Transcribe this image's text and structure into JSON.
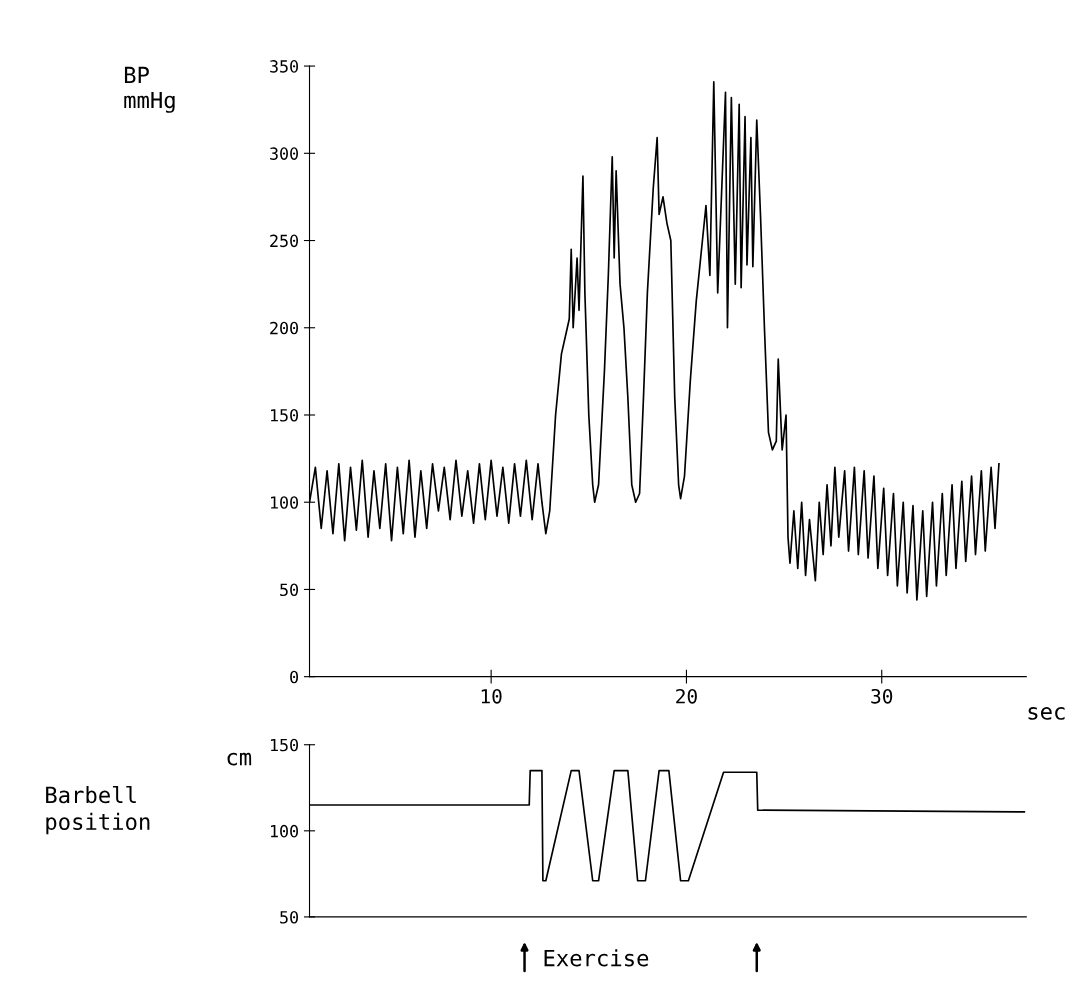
{
  "chart_data": [
    {
      "type": "line",
      "ylabel": "BP\nmmHg",
      "xlabel": "sec",
      "xlim": [
        0.7,
        37.4
      ],
      "ylim": [
        0,
        350
      ],
      "xticks": [
        10,
        20,
        30
      ],
      "yticks": [
        0,
        50,
        100,
        150,
        200,
        250,
        300,
        350
      ],
      "grid": false,
      "legend": false,
      "marker": "none",
      "line_style": "solid",
      "series": [
        {
          "color": "#000000",
          "x": [
            0.7,
            1.0,
            1.3,
            1.6,
            1.9,
            2.2,
            2.5,
            2.8,
            3.1,
            3.4,
            3.7,
            4.0,
            4.3,
            4.6,
            4.9,
            5.2,
            5.5,
            5.8,
            6.1,
            6.4,
            6.7,
            7.0,
            7.3,
            7.6,
            7.9,
            8.2,
            8.5,
            8.8,
            9.1,
            9.4,
            9.7,
            10.0,
            10.3,
            10.6,
            10.9,
            11.2,
            11.5,
            11.8,
            12.1,
            12.4,
            12.6,
            12.8,
            13.0,
            13.3,
            13.6,
            13.8,
            14.0,
            14.1,
            14.2,
            14.4,
            14.5,
            14.7,
            14.8,
            15.0,
            15.2,
            15.3,
            15.5,
            15.8,
            16.0,
            16.2,
            16.3,
            16.4,
            16.6,
            16.8,
            17.0,
            17.2,
            17.4,
            17.6,
            17.8,
            18.0,
            18.3,
            18.5,
            18.6,
            18.8,
            19.0,
            19.2,
            19.4,
            19.6,
            19.7,
            19.9,
            20.2,
            20.5,
            20.8,
            21.0,
            21.2,
            21.4,
            21.6,
            22.0,
            22.1,
            22.3,
            22.5,
            22.7,
            22.8,
            23.0,
            23.1,
            23.3,
            23.4,
            23.6,
            23.8,
            24.0,
            24.2,
            24.4,
            24.6,
            24.7,
            24.9,
            25.1,
            25.2,
            25.3,
            25.5,
            25.7,
            25.9,
            26.1,
            26.3,
            26.6,
            26.8,
            27.0,
            27.2,
            27.4,
            27.6,
            27.8,
            28.1,
            28.3,
            28.6,
            28.8,
            29.1,
            29.3,
            29.6,
            29.8,
            30.1,
            30.3,
            30.6,
            30.8,
            31.1,
            31.3,
            31.6,
            31.8,
            32.1,
            32.3,
            32.6,
            32.8,
            33.1,
            33.3,
            33.6,
            33.8,
            34.1,
            34.3,
            34.6,
            34.8,
            35.1,
            35.3,
            35.6,
            35.8,
            36.0
          ],
          "values": [
            100,
            120,
            85,
            118,
            82,
            122,
            78,
            120,
            84,
            124,
            80,
            118,
            85,
            122,
            78,
            120,
            82,
            124,
            80,
            118,
            85,
            122,
            95,
            120,
            90,
            124,
            92,
            118,
            88,
            122,
            90,
            124,
            92,
            120,
            88,
            122,
            92,
            124,
            90,
            122,
            100,
            82,
            95,
            150,
            185,
            195,
            205,
            245,
            200,
            240,
            210,
            287,
            220,
            150,
            110,
            100,
            110,
            175,
            230,
            298,
            240,
            290,
            225,
            200,
            160,
            110,
            100,
            105,
            160,
            220,
            280,
            309,
            265,
            275,
            260,
            250,
            160,
            110,
            102,
            115,
            170,
            215,
            248,
            270,
            230,
            341,
            220,
            335,
            200,
            332,
            225,
            328,
            223,
            321,
            236,
            309,
            235,
            319,
            262,
            198,
            140,
            130,
            135,
            182,
            130,
            150,
            80,
            65,
            95,
            62,
            100,
            58,
            90,
            55,
            100,
            70,
            110,
            75,
            120,
            80,
            118,
            72,
            120,
            70,
            118,
            68,
            115,
            62,
            108,
            58,
            105,
            52,
            100,
            48,
            98,
            44,
            95,
            46,
            100,
            52,
            105,
            58,
            110,
            62,
            112,
            66,
            115,
            70,
            118,
            72,
            120,
            85,
            122
          ]
        }
      ]
    },
    {
      "type": "line",
      "ylabel": "cm",
      "annotations": [
        "Barbell\nposition",
        "Exercise"
      ],
      "xlim": [
        0.7,
        37.4
      ],
      "ylim": [
        50,
        150
      ],
      "yticks": [
        50,
        100,
        150
      ],
      "tick_labels": "y",
      "grid": false,
      "legend": false,
      "marker": "none",
      "line_style": "solid",
      "series": [
        {
          "color": "#000000",
          "x": [
            0.7,
            11.95,
            12.0,
            12.6,
            12.65,
            12.8,
            14.1,
            14.5,
            15.2,
            15.5,
            16.3,
            17.0,
            17.5,
            17.9,
            18.6,
            19.1,
            19.7,
            20.1,
            21.9,
            23.6,
            23.65,
            37.3
          ],
          "values": [
            115,
            115,
            135,
            135,
            71,
            71,
            135,
            135,
            71,
            71,
            135,
            135,
            71,
            71,
            135,
            135,
            71,
            71,
            134,
            134,
            112,
            111
          ]
        }
      ]
    }
  ]
}
